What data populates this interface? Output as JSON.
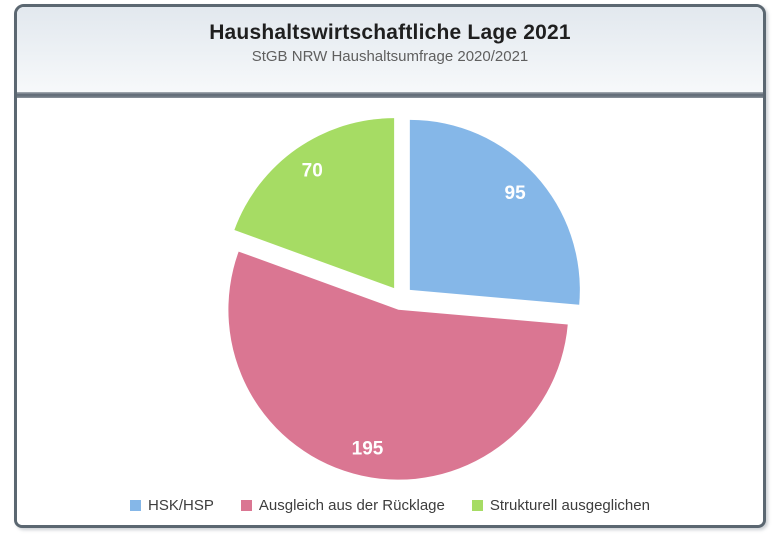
{
  "chart_data": {
    "type": "pie",
    "title": "Haushaltswirtschaftliche Lage 2021",
    "subtitle": "StGB NRW Haushaltsumfrage 2020/2021",
    "direction": "clockwise",
    "start_angle_deg": 0,
    "exploded": true,
    "legend_position": "bottom",
    "data_labels": "values",
    "total": 360,
    "slices": [
      {
        "label": "HSK/HSP",
        "value": 95,
        "color": "#85b7e8"
      },
      {
        "label": "Ausgleich aus der Rücklage",
        "value": 195,
        "color": "#da7692"
      },
      {
        "label": "Strukturell ausgeglichen",
        "value": 70,
        "color": "#a6dc64"
      }
    ]
  },
  "style": {
    "frame_border_color": "#5b6771",
    "header_background": "#e9eef3",
    "title_color": "#1f1f1f",
    "subtitle_color": "#5f5f5f",
    "legend_text_color": "#3d3d3d",
    "pie_label_color": "#ffffff"
  }
}
